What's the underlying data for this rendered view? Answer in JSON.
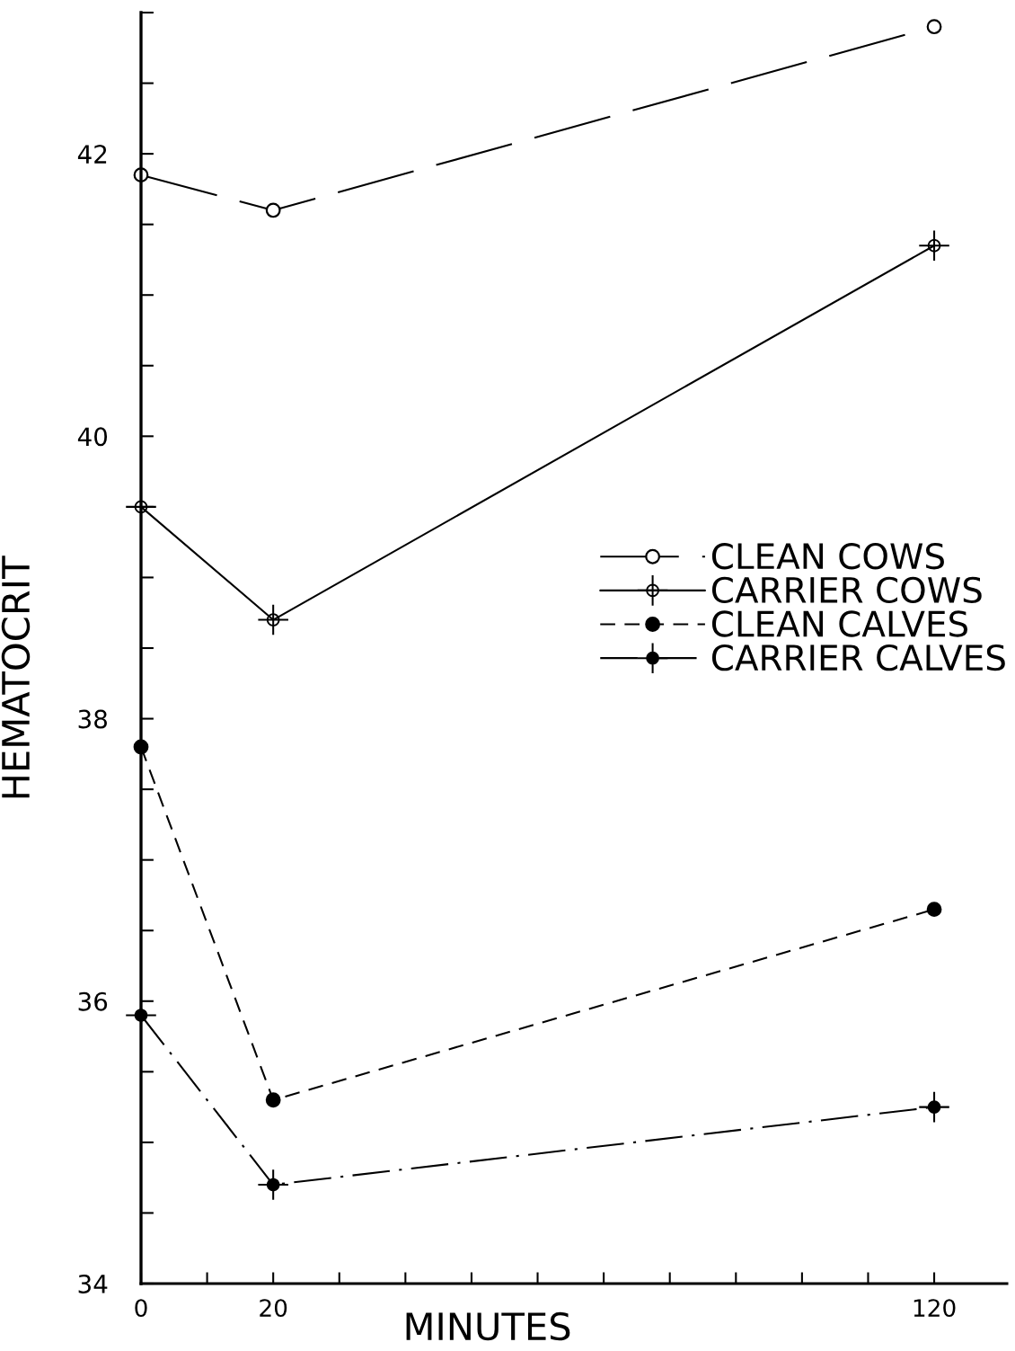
{
  "chart_data": {
    "type": "line",
    "xlabel": "MINUTES",
    "ylabel": "HEMATOCRIT",
    "x": [
      0,
      20,
      120
    ],
    "series": [
      {
        "name": "CLEAN COWS",
        "color": "#000000",
        "values": [
          41.85,
          41.6,
          42.9
        ],
        "line_style": "longdash",
        "marker": "circle-open"
      },
      {
        "name": "CARRIER COWS",
        "color": "#000000",
        "values": [
          39.5,
          38.7,
          41.35
        ],
        "line_style": "solid",
        "marker": "circle-cross-open"
      },
      {
        "name": "CLEAN CALVES",
        "color": "#000000",
        "values": [
          37.8,
          35.3,
          36.65
        ],
        "line_style": "dashed",
        "marker": "circle"
      },
      {
        "name": "CARRIER CALVES",
        "color": "#000000",
        "values": [
          35.9,
          34.7,
          35.25
        ],
        "line_style": "dashdot",
        "marker": "circle-cross"
      }
    ],
    "xlim": [
      0,
      131
    ],
    "xticks": [
      0,
      {
        "value": 10,
        "label": null
      },
      20,
      {
        "value": 30,
        "label": null
      },
      {
        "value": 40,
        "label": null
      },
      {
        "value": 50,
        "label": null
      },
      {
        "value": 60,
        "label": null
      },
      {
        "value": 70,
        "label": null
      },
      {
        "value": 80,
        "label": null
      },
      {
        "value": 90,
        "label": null
      },
      {
        "value": 100,
        "label": null
      },
      {
        "value": 110,
        "label": null
      },
      120
    ],
    "ylim": [
      34,
      43
    ],
    "yticks": [
      34,
      {
        "value": 34.5,
        "label": null
      },
      {
        "value": 35,
        "label": null
      },
      {
        "value": 35.5,
        "label": null
      },
      36,
      {
        "value": 36.5,
        "label": null
      },
      {
        "value": 37,
        "label": null
      },
      {
        "value": 37.5,
        "label": null
      },
      38,
      {
        "value": 38.5,
        "label": null
      },
      {
        "value": 39,
        "label": null
      },
      {
        "value": 39.5,
        "label": null
      },
      40,
      {
        "value": 40.5,
        "label": null
      },
      {
        "value": 41,
        "label": null
      },
      {
        "value": 41.5,
        "label": null
      },
      42,
      {
        "value": 42.5,
        "label": null
      },
      {
        "value": 43,
        "label": null
      }
    ],
    "legend": "right"
  }
}
